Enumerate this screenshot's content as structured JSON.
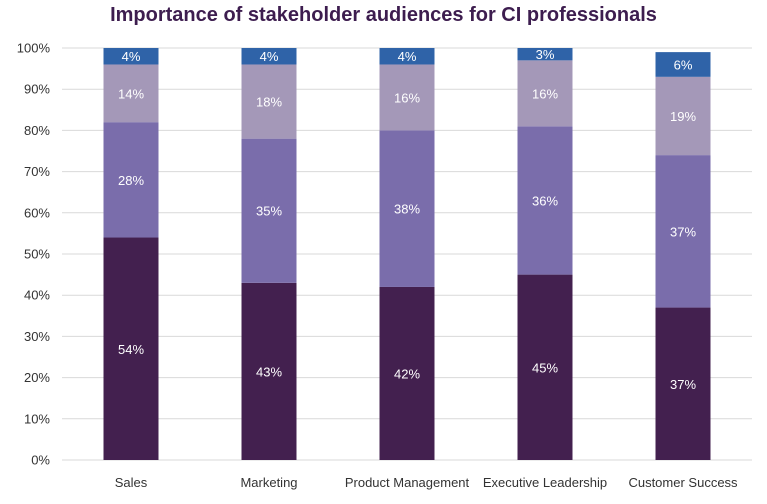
{
  "chart_data": {
    "type": "bar",
    "stacked": true,
    "title": "Importance of stakeholder audiences for CI professionals",
    "categories": [
      "Sales",
      "Marketing",
      "Product Management",
      "Executive Leadership",
      "Customer Success"
    ],
    "series": [
      {
        "color": "#43204f",
        "values": [
          54,
          43,
          42,
          45,
          37
        ]
      },
      {
        "color": "#7a6dab",
        "values": [
          28,
          35,
          38,
          36,
          37
        ]
      },
      {
        "color": "#a498b8",
        "values": [
          14,
          18,
          16,
          16,
          19
        ]
      },
      {
        "color": "#2f63a8",
        "values": [
          4,
          4,
          4,
          3,
          6
        ]
      }
    ],
    "y_ticks": [
      "0%",
      "10%",
      "20%",
      "30%",
      "40%",
      "50%",
      "60%",
      "70%",
      "80%",
      "90%",
      "100%"
    ],
    "ylim": [
      0,
      100
    ],
    "grid": true,
    "legend": "none"
  }
}
